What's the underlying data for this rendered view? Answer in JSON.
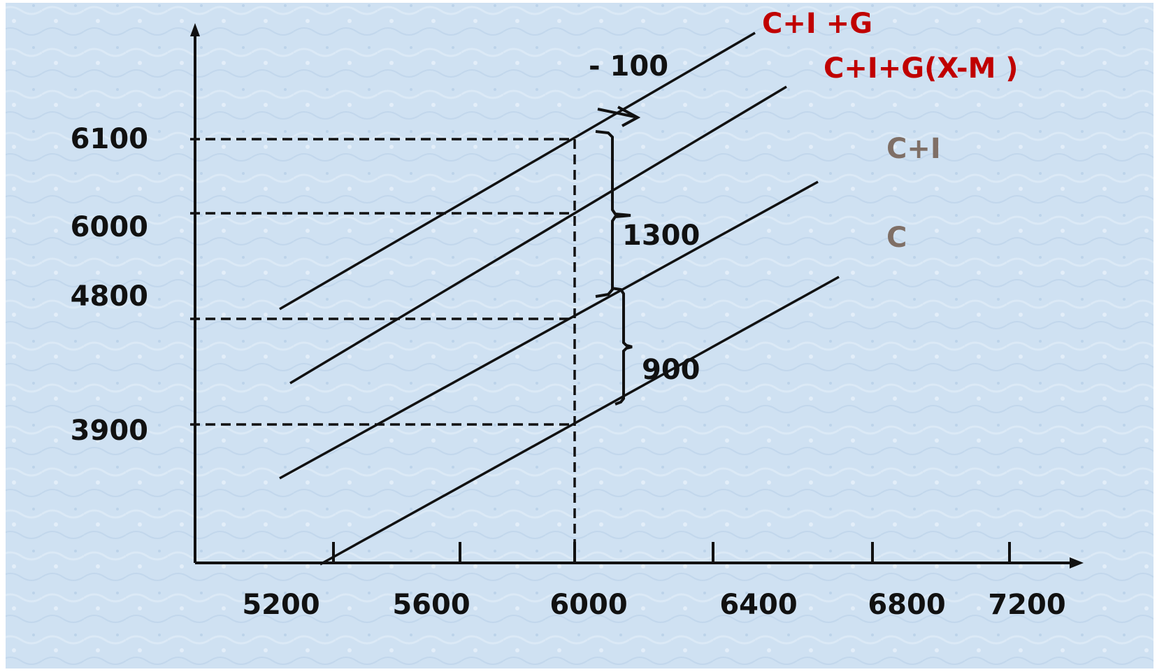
{
  "chart_data": {
    "type": "line",
    "title": "",
    "xlabel": "",
    "ylabel": "",
    "x_ticks": [
      "5200",
      "5600",
      "6000",
      "6400",
      "6800",
      "7200"
    ],
    "y_ticks": [
      "6100",
      "6000",
      "4800",
      "3900"
    ],
    "series": [
      {
        "name": "C+I +G",
        "color": "#c00000"
      },
      {
        "name": "C+I+G(X-M )",
        "color": "#c00000"
      },
      {
        "name": "C+I",
        "color": "#7f6f66"
      },
      {
        "name": "C",
        "color": "#7f6f66"
      }
    ],
    "annotations": {
      "shift": "- 100",
      "gap_upper": "1300",
      "gap_lower": "900"
    },
    "grid": false,
    "background_color": "#cfe1f2",
    "line_color": "#111111"
  }
}
